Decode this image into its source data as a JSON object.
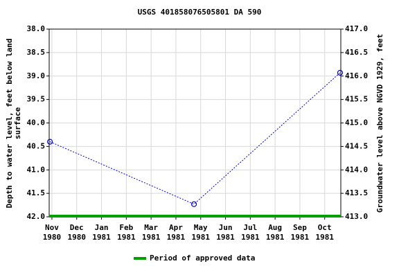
{
  "chart_data": {
    "type": "line",
    "title": "USGS 401858076505801 DA   590",
    "y_label": [
      "Depth to water level, feet below land",
      "surface"
    ],
    "y2_label": "Groundwater level above NGVD 1929, feet",
    "x": [
      -0.08,
      5.73,
      11.62
    ],
    "xlim": [
      -0.11,
      11.65
    ],
    "xticks": [
      {
        "value": 0,
        "label": "Nov 1980"
      },
      {
        "value": 1,
        "label": "Dec 1980"
      },
      {
        "value": 2,
        "label": "Jan 1981"
      },
      {
        "value": 3,
        "label": "Feb 1981"
      },
      {
        "value": 4,
        "label": "Mar 1981"
      },
      {
        "value": 5,
        "label": "Apr 1981"
      },
      {
        "value": 6,
        "label": "May 1981"
      },
      {
        "value": 7,
        "label": "Jun 1981"
      },
      {
        "value": 8,
        "label": "Jul 1981"
      },
      {
        "value": 9,
        "label": "Aug 1981"
      },
      {
        "value": 10,
        "label": "Sep 1981"
      },
      {
        "value": 11,
        "label": "Oct 1981"
      }
    ],
    "series": [
      {
        "color": "#0000cc",
        "values": [
          40.4,
          41.73,
          38.93
        ]
      }
    ],
    "ylim": [
      42,
      38
    ],
    "yticks": [
      {
        "value": 38,
        "label": "38.0"
      },
      38.5,
      {
        "value": 39,
        "label": "39.0"
      },
      39.5,
      {
        "value": 40,
        "label": "40.0"
      },
      40.5,
      {
        "value": 41,
        "label": "41.0"
      },
      41.5,
      {
        "value": 42,
        "label": "42.0"
      }
    ],
    "y2lim": [
      413,
      417
    ],
    "y2ticks": [
      {
        "value": 417,
        "label": "417.0"
      },
      416.5,
      {
        "value": 416,
        "label": "416.0"
      },
      415.5,
      {
        "value": 415,
        "label": "415.0"
      },
      414.5,
      {
        "value": 414,
        "label": "414.0"
      },
      413.5,
      {
        "value": 413,
        "label": "413.0"
      }
    ],
    "grid": true,
    "approved_period": {
      "name": "Period of approved data",
      "color": "#00a000",
      "x": [
        -0.11,
        11.65
      ]
    }
  }
}
